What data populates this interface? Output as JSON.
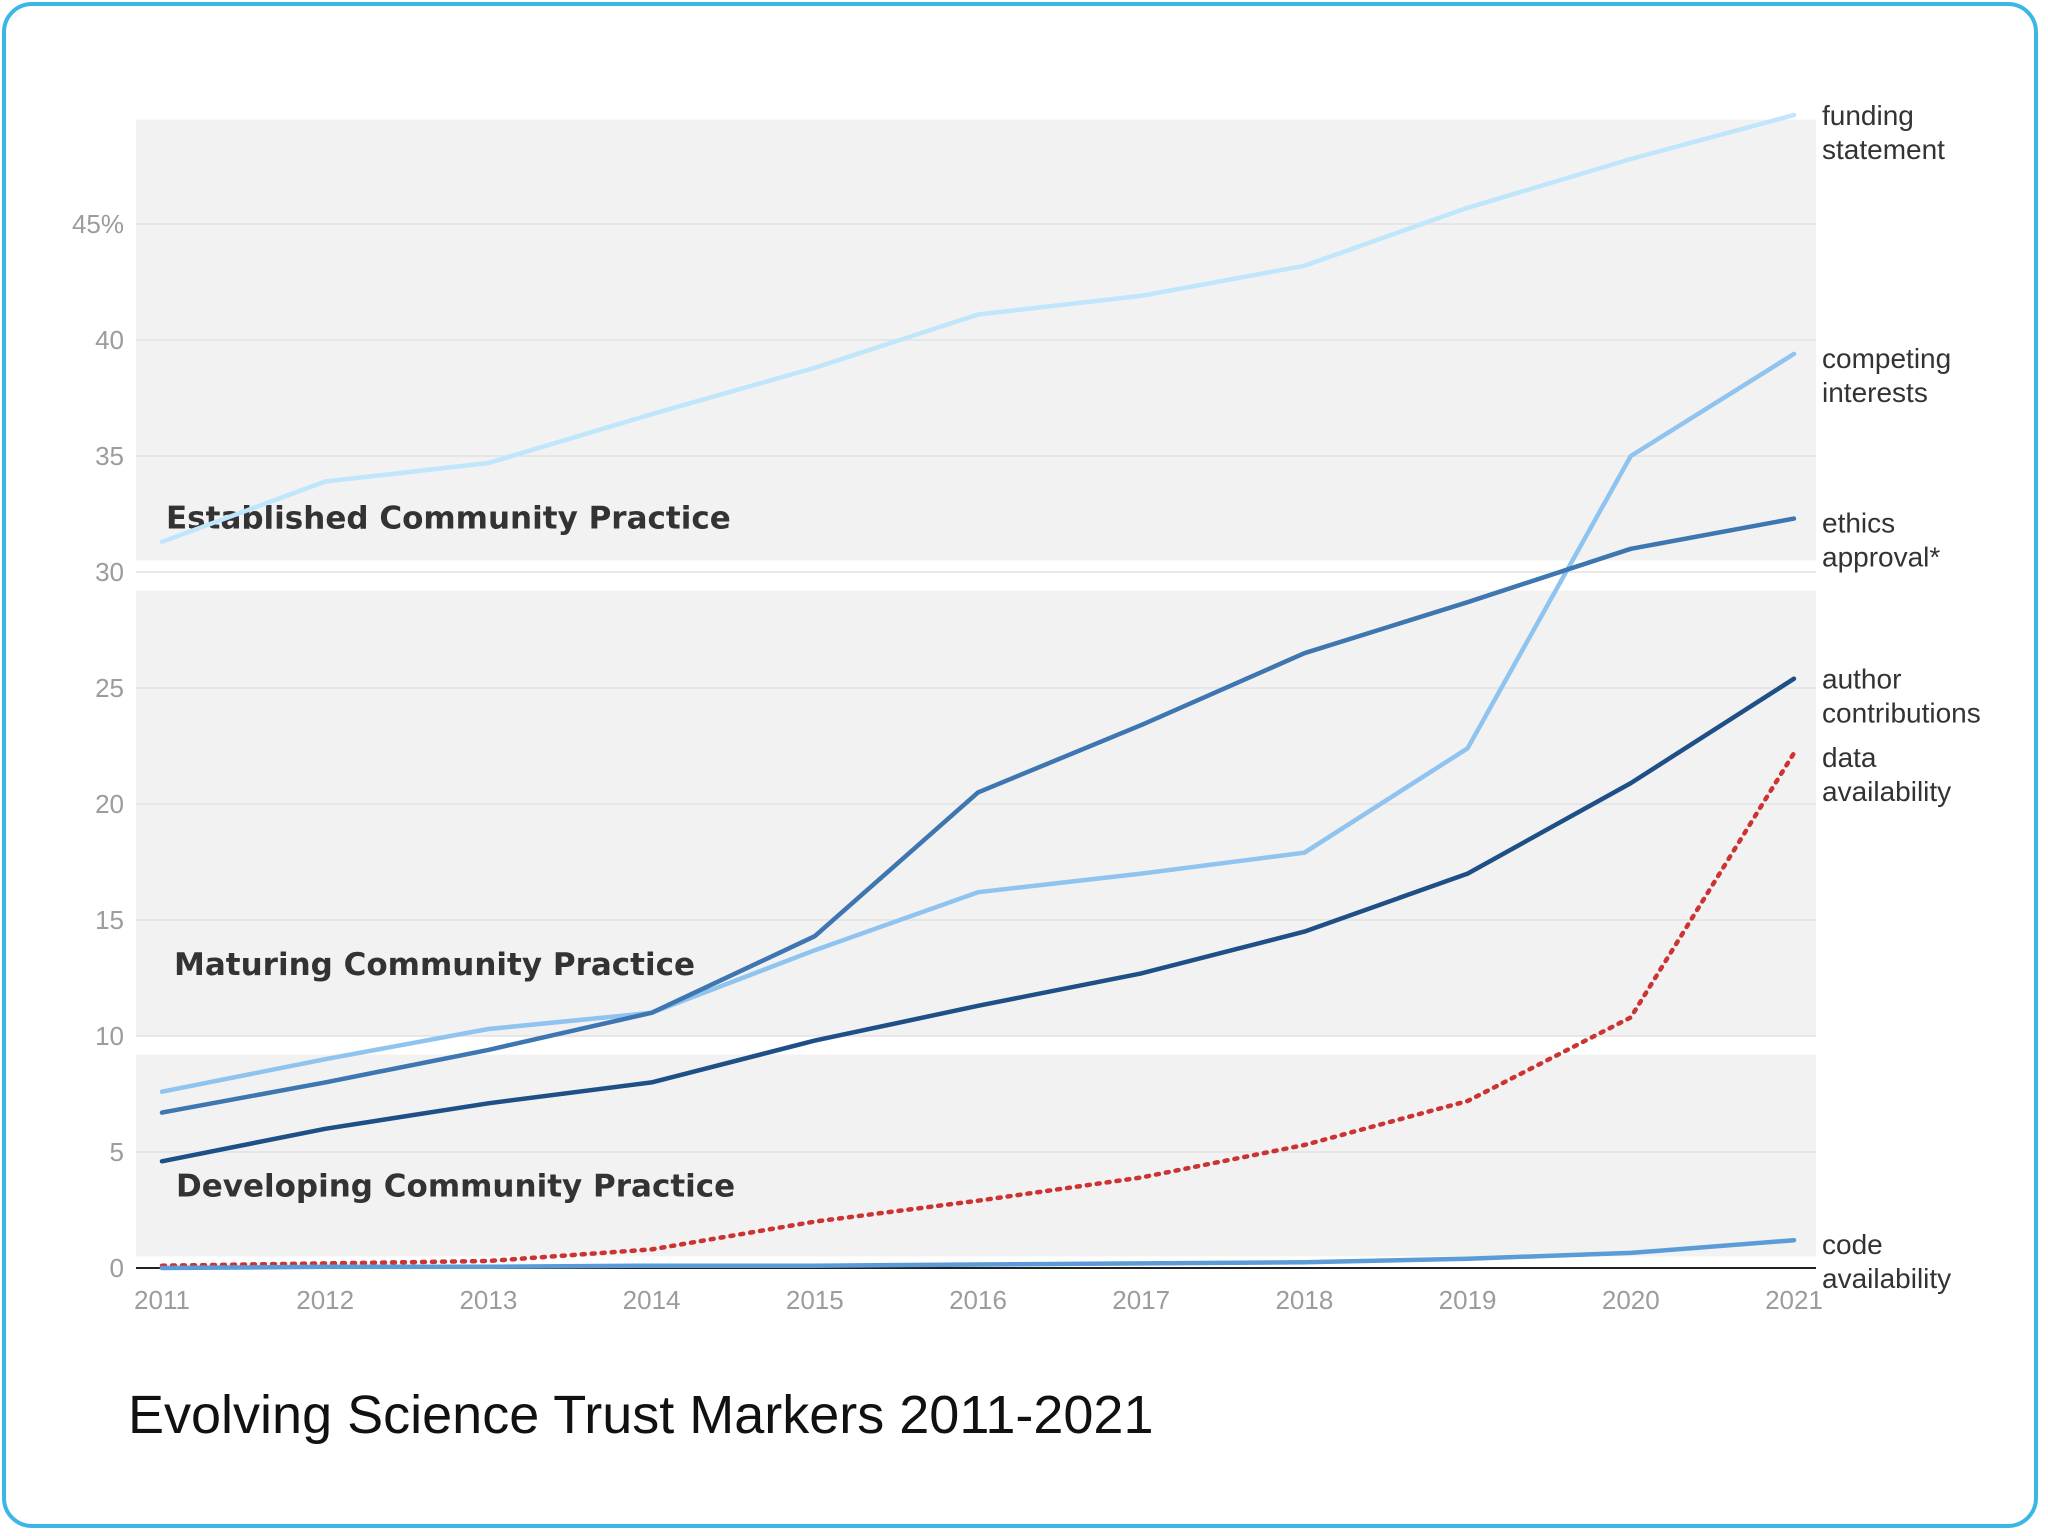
{
  "chart_data": {
    "type": "line",
    "title": "Evolving Science Trust Markers 2011-2021",
    "xlabel": "",
    "ylabel": "",
    "x": [
      2011,
      2012,
      2013,
      2014,
      2015,
      2016,
      2017,
      2018,
      2019,
      2020,
      2021
    ],
    "ylim": [
      0,
      50
    ],
    "y_ticks": [
      {
        "value": 0,
        "label": "0"
      },
      {
        "value": 5,
        "label": "5"
      },
      {
        "value": 10,
        "label": "10"
      },
      {
        "value": 15,
        "label": "15"
      },
      {
        "value": 20,
        "label": "20"
      },
      {
        "value": 25,
        "label": "25"
      },
      {
        "value": 30,
        "label": "30"
      },
      {
        "value": 35,
        "label": "35"
      },
      {
        "value": 40,
        "label": "40"
      },
      {
        "value": 45,
        "label": "45%"
      }
    ],
    "x_tick_labels": [
      "2011",
      "2012",
      "2013",
      "2014",
      "2015",
      "2016",
      "2017",
      "2018",
      "2019",
      "2020",
      "2021"
    ],
    "grid": true,
    "bands": [
      {
        "label": "Established Community Practice",
        "from": 30.5,
        "to": 49.5
      },
      {
        "label": "Maturing Community Practice",
        "from": 10,
        "to": 29.2
      },
      {
        "label": "Developing Community Practice",
        "from": 0.5,
        "to": 9.2
      }
    ],
    "series": [
      {
        "name": "funding statement",
        "label_lines": [
          "funding",
          "statement"
        ],
        "color": "#bfe6fb",
        "style": "solid",
        "values": [
          31.3,
          33.9,
          34.7,
          36.8,
          38.8,
          41.1,
          41.9,
          43.2,
          45.7,
          47.8,
          49.7
        ]
      },
      {
        "name": "competing interests",
        "label_lines": [
          "competing",
          "interests"
        ],
        "color": "#8fc3f0",
        "style": "solid",
        "values": [
          7.6,
          9.0,
          10.3,
          11.0,
          13.7,
          16.2,
          17.0,
          17.9,
          22.4,
          35.0,
          39.4
        ]
      },
      {
        "name": "ethics approval*",
        "label_lines": [
          "ethics",
          "approval*"
        ],
        "color": "#3d76b0",
        "style": "solid",
        "values": [
          6.7,
          8.0,
          9.4,
          11.0,
          14.3,
          20.5,
          23.4,
          26.5,
          28.7,
          31.0,
          32.3
        ]
      },
      {
        "name": "author contributions",
        "label_lines": [
          "author",
          "contributions"
        ],
        "color": "#1f4f87",
        "style": "solid",
        "values": [
          4.6,
          6.0,
          7.1,
          8.0,
          9.8,
          11.3,
          12.7,
          14.5,
          17.0,
          20.9,
          25.4
        ]
      },
      {
        "name": "data availability",
        "label_lines": [
          "data",
          "availability"
        ],
        "color": "#cc3333",
        "style": "dotted",
        "values": [
          0.1,
          0.2,
          0.3,
          0.8,
          2.0,
          2.9,
          3.9,
          5.3,
          7.2,
          10.8,
          22.2
        ]
      },
      {
        "name": "code availability",
        "label_lines": [
          "code",
          "availability"
        ],
        "color": "#5b9bd8",
        "style": "solid",
        "values": [
          0.0,
          0.05,
          0.05,
          0.1,
          0.1,
          0.15,
          0.2,
          0.25,
          0.4,
          0.65,
          1.2
        ]
      }
    ]
  }
}
